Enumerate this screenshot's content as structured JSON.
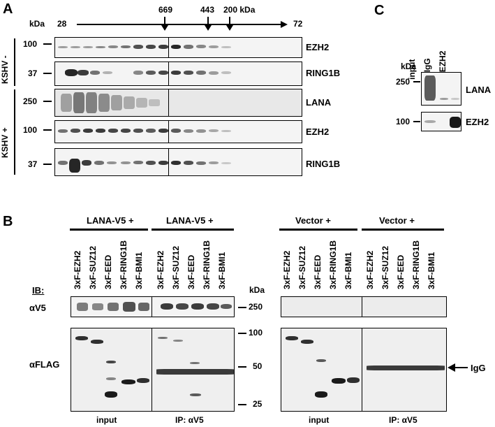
{
  "panelA": {
    "letter": "A",
    "kda_label": "kDa",
    "fraction_start": "28",
    "fraction_end": "72",
    "markers": [
      "669",
      "443",
      "200 kDa"
    ],
    "group_neg": "KSHV -",
    "group_pos": "KSHV +",
    "rows": [
      {
        "mw": "100",
        "protein": "EZH2"
      },
      {
        "mw": "37",
        "protein": "RING1B"
      },
      {
        "mw": "250",
        "protein": "LANA"
      },
      {
        "mw": "100",
        "protein": "EZH2"
      },
      {
        "mw": "37",
        "protein": "RING1B"
      }
    ]
  },
  "panelB": {
    "letter": "B",
    "groups": [
      "LANA-V5 +",
      "LANA-V5 +",
      "Vector +",
      "Vector +"
    ],
    "lanes": [
      "3xF-EZH2",
      "3xF-SUZ12",
      "3xF-EED",
      "3xF-RING1B",
      "3xF-BMI1"
    ],
    "ib_label": "IB:",
    "row_v5": "αV5",
    "row_flag": "αFLAG",
    "kda_label": "kDa",
    "mw": [
      "250",
      "100",
      "50",
      "25"
    ],
    "igg_label": "IgG",
    "bottom_labels": [
      "input",
      "IP: αV5",
      "input",
      "IP: αV5"
    ]
  },
  "panelC": {
    "letter": "C",
    "kda_label": "kDa",
    "lanes": [
      "input",
      "α IgG",
      "α EZH2"
    ],
    "rows": [
      {
        "mw": "250",
        "protein": "LANA"
      },
      {
        "mw": "100",
        "protein": "EZH2"
      }
    ]
  }
}
